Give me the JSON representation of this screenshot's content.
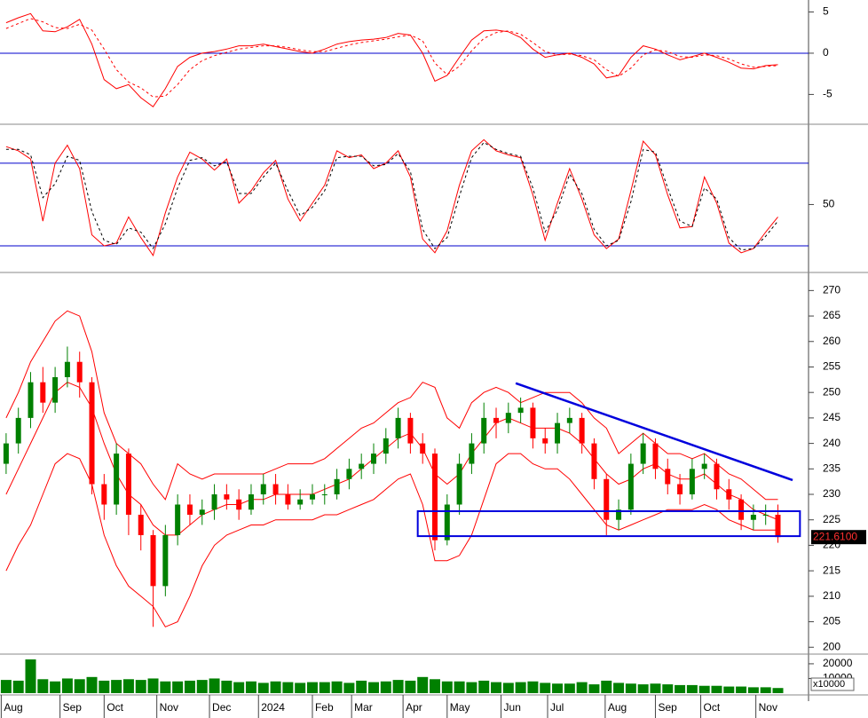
{
  "chart_data": [
    {
      "type": "line",
      "xlim": [
        0,
        66
      ],
      "ylim": [
        -8.4,
        6.45
      ],
      "yticks": [
        -5,
        0,
        5
      ],
      "hlines": [
        0
      ],
      "hline_color": "#0000cc",
      "series": [
        {
          "color": "#ff0000",
          "style": "solid",
          "values": [
            3.7,
            4.3,
            4.8,
            2.7,
            2.6,
            3.2,
            4.1,
            1.1,
            -3.2,
            -4.3,
            -3.8,
            -5.4,
            -6.5,
            -4.3,
            -1.6,
            -0.5,
            0,
            0.2,
            0.5,
            0.9,
            0.9,
            1.1,
            0.8,
            0.5,
            0.2,
            0,
            0.5,
            1.1,
            1.4,
            1.6,
            1.7,
            1.9,
            2.4,
            2.2,
            0,
            -3.4,
            -2.7,
            -0.5,
            1.6,
            2.7,
            2.8,
            2.6,
            1.9,
            0.5,
            -0.5,
            -0.2,
            0,
            -0.5,
            -1.3,
            -3.0,
            -2.7,
            -0.5,
            0.9,
            0.5,
            -0.2,
            -0.8,
            -0.4,
            0,
            -0.5,
            -1.1,
            -1.8,
            -1.9,
            -1.5,
            -1.4
          ]
        },
        {
          "color": "#ff0000",
          "style": "dashed",
          "values": [
            3.0,
            3.6,
            4.2,
            3.8,
            3.1,
            3.0,
            3.5,
            2.8,
            0.5,
            -2.0,
            -3.5,
            -4.2,
            -5.3,
            -5.2,
            -3.8,
            -2.0,
            -0.9,
            -0.3,
            0.1,
            0.5,
            0.7,
            0.9,
            0.9,
            0.7,
            0.4,
            0.2,
            0.2,
            0.6,
            1.0,
            1.3,
            1.5,
            1.7,
            2.0,
            2.2,
            1.5,
            -1.2,
            -2.6,
            -1.6,
            0.3,
            1.8,
            2.5,
            2.7,
            2.3,
            1.3,
            0.2,
            -0.2,
            -0.1,
            -0.3,
            -0.8,
            -2.0,
            -2.8,
            -1.8,
            -0.2,
            0.4,
            0.2,
            -0.4,
            -0.5,
            -0.2,
            -0.3,
            -0.7,
            -1.3,
            -1.7,
            -1.6,
            -1.5
          ]
        }
      ]
    },
    {
      "type": "line",
      "xlim": [
        0,
        66
      ],
      "ylim": [
        2,
        105
      ],
      "yticks": [
        50
      ],
      "hlines": [
        20,
        80
      ],
      "hline_color": "#0000cc",
      "series": [
        {
          "color": "#ff0000",
          "style": "solid",
          "values": [
            92,
            89,
            83,
            38,
            80,
            93,
            76,
            28,
            20,
            22,
            41,
            26,
            13,
            44,
            70,
            88,
            83,
            75,
            83,
            51,
            60,
            73,
            82,
            54,
            38,
            51,
            64,
            89,
            84,
            86,
            76,
            80,
            89,
            70,
            25,
            15,
            31,
            64,
            89,
            97,
            89,
            86,
            84,
            57,
            24,
            51,
            76,
            54,
            28,
            18,
            25,
            60,
            96,
            86,
            57,
            33,
            34,
            70,
            51,
            22,
            15,
            18,
            30,
            41
          ]
        },
        {
          "color": "#000000",
          "style": "dashed",
          "values": [
            90,
            90,
            86,
            55,
            65,
            85,
            82,
            45,
            24,
            21,
            33,
            30,
            18,
            36,
            62,
            82,
            84,
            78,
            81,
            58,
            58,
            70,
            80,
            60,
            42,
            48,
            60,
            84,
            85,
            85,
            78,
            79,
            87,
            74,
            32,
            18,
            26,
            56,
            84,
            95,
            90,
            87,
            85,
            62,
            30,
            46,
            72,
            58,
            32,
            20,
            24,
            52,
            90,
            88,
            62,
            38,
            34,
            62,
            54,
            26,
            17,
            18,
            27,
            38
          ]
        }
      ]
    },
    {
      "type": "candlestick",
      "xlim": [
        0,
        66
      ],
      "ylim": [
        199,
        272.5
      ],
      "yticks": [
        200,
        205,
        210,
        215,
        220,
        225,
        230,
        235,
        240,
        245,
        250,
        255,
        260,
        265,
        270
      ],
      "up_color": "#008000",
      "down_color": "#ff0000",
      "open": [
        236,
        240,
        245,
        252,
        248,
        253,
        256,
        252,
        232,
        228,
        238,
        226,
        222,
        212,
        222,
        228,
        226,
        227,
        230,
        229,
        227,
        230,
        232,
        230,
        228,
        229,
        230,
        230,
        233,
        235,
        236,
        238,
        241,
        245,
        240,
        238,
        221,
        228,
        236,
        240,
        245,
        244,
        246,
        247,
        241,
        240,
        244,
        245,
        240,
        233,
        225,
        227,
        236,
        240,
        235,
        232,
        230,
        235,
        236,
        231,
        229,
        225,
        226,
        226
      ],
      "high": [
        242,
        247,
        254,
        255,
        255,
        259,
        258,
        253,
        234,
        240,
        239,
        228,
        223,
        224,
        230,
        230,
        229,
        232,
        232,
        231,
        232,
        234,
        234,
        232,
        231,
        232,
        232,
        235,
        237,
        238,
        240,
        243,
        247,
        246,
        242,
        239,
        230,
        238,
        242,
        248,
        247,
        248,
        249,
        248,
        243,
        246,
        247,
        246,
        241,
        234,
        229,
        238,
        242,
        241,
        237,
        234,
        237,
        238,
        237,
        233,
        230,
        228,
        228,
        228
      ],
      "low": [
        234,
        238,
        243,
        246,
        246,
        251,
        249,
        230,
        225,
        226,
        222,
        219,
        204,
        210,
        220,
        224,
        224,
        225,
        227,
        225,
        226,
        228,
        228,
        227,
        227,
        228,
        228,
        229,
        231,
        233,
        234,
        236,
        239,
        238,
        236,
        219,
        220,
        226,
        234,
        238,
        241,
        242,
        244,
        239,
        238,
        238,
        242,
        238,
        231,
        222,
        223,
        226,
        234,
        233,
        230,
        228,
        229,
        233,
        229,
        227,
        223,
        223,
        224,
        220.5
      ],
      "close": [
        240,
        245,
        252,
        248,
        253,
        256,
        252,
        232,
        228,
        238,
        226,
        222,
        212,
        222,
        228,
        226,
        227,
        230,
        229,
        227,
        230,
        232,
        230,
        228,
        229,
        230,
        230,
        233,
        235,
        236,
        238,
        241,
        245,
        240,
        238,
        221,
        228,
        236,
        240,
        245,
        244,
        246,
        247,
        241,
        240,
        244,
        245,
        240,
        233,
        225,
        227,
        236,
        240,
        235,
        232,
        230,
        235,
        236,
        231,
        229,
        225,
        226,
        226,
        221.61
      ],
      "bands": [
        {
          "color": "#ff0000",
          "values": [
            245,
            250,
            256,
            260,
            264,
            266,
            265,
            258,
            246,
            240,
            238,
            236,
            232,
            229,
            236,
            234,
            233,
            234,
            234,
            234,
            234,
            234,
            235,
            236,
            236,
            236,
            237,
            239,
            241,
            243,
            244,
            246,
            248,
            249,
            252,
            251,
            245,
            243,
            248,
            250,
            251,
            250,
            248,
            249,
            250,
            250,
            250,
            248,
            245,
            243,
            238,
            240,
            242,
            240,
            238,
            238,
            237,
            238,
            236,
            234,
            233,
            231,
            229,
            229
          ]
        },
        {
          "color": "#ff0000",
          "values": [
            230,
            235,
            240,
            245,
            250,
            252,
            251,
            247,
            240,
            234,
            230,
            228,
            224,
            222,
            222,
            224,
            226,
            227,
            228,
            228,
            229,
            229,
            230,
            230,
            230,
            230,
            231,
            232,
            233,
            235,
            237,
            239,
            241,
            242,
            239,
            234,
            232,
            234,
            238,
            241,
            244,
            245,
            244,
            243,
            243,
            243,
            242,
            240,
            237,
            234,
            232,
            233,
            235,
            236,
            234,
            233,
            233,
            234,
            232,
            230,
            229,
            227,
            226,
            225
          ]
        },
        {
          "color": "#ff0000",
          "values": [
            215,
            220,
            224,
            230,
            236,
            238,
            237,
            232,
            222,
            216,
            212,
            210,
            208,
            204,
            205,
            210,
            216,
            220,
            222,
            223,
            224,
            224,
            225,
            225,
            225,
            225,
            226,
            226,
            227,
            228,
            229,
            231,
            233,
            234,
            228,
            217,
            217,
            218,
            222,
            229,
            236,
            238,
            238,
            236,
            235,
            235,
            233,
            230,
            227,
            224,
            223,
            224,
            225,
            226,
            227,
            227,
            227,
            228,
            227,
            225,
            224,
            223,
            223,
            223
          ]
        }
      ],
      "trendline": {
        "color": "#0000dd",
        "x": [
          42.1,
          64.7
        ],
        "y": [
          251.8,
          232.8
        ]
      },
      "box": {
        "color": "#0000dd",
        "x": [
          34.1,
          65.3
        ],
        "y": [
          221.8,
          226.7
        ]
      },
      "last_price": {
        "value": 221.61,
        "label": "221.6100"
      }
    },
    {
      "type": "bar",
      "xlim": [
        0,
        66
      ],
      "ylim": [
        0,
        26000
      ],
      "yticks": [
        10000,
        20000
      ],
      "color": "#008000",
      "scale_label": "x10000",
      "values": [
        9000,
        8500,
        23000,
        9500,
        8000,
        10000,
        9500,
        11000,
        8500,
        9000,
        9500,
        9000,
        10000,
        8000,
        8000,
        8500,
        9000,
        10000,
        8500,
        7500,
        8000,
        7000,
        8000,
        7500,
        7000,
        7500,
        7500,
        8000,
        7000,
        8500,
        7500,
        8000,
        9000,
        8500,
        11000,
        9500,
        8000,
        8000,
        7500,
        8500,
        7500,
        7000,
        7500,
        8000,
        7000,
        6500,
        6500,
        7500,
        6000,
        8500,
        7000,
        6500,
        6000,
        6500,
        6000,
        5500,
        5500,
        5000,
        5000,
        4500,
        4500,
        4000,
        4000,
        3500
      ],
      "xticks": [
        {
          "value": 0.1,
          "label": "Aug"
        },
        {
          "value": 4.9,
          "label": "Sep"
        },
        {
          "value": 8.5,
          "label": "Oct"
        },
        {
          "value": 12.8,
          "label": "Nov"
        },
        {
          "value": 17.1,
          "label": "Dec"
        },
        {
          "value": 21.1,
          "label": "2024"
        },
        {
          "value": 25.5,
          "label": "Feb"
        },
        {
          "value": 28.7,
          "label": "Mar"
        },
        {
          "value": 32.9,
          "label": "Apr"
        },
        {
          "value": 36.5,
          "label": "May"
        },
        {
          "value": 40.9,
          "label": "Jun"
        },
        {
          "value": 44.7,
          "label": "Jul"
        },
        {
          "value": 49.4,
          "label": "Aug"
        },
        {
          "value": 53.5,
          "label": "Sep"
        },
        {
          "value": 57.2,
          "label": "Oct"
        },
        {
          "value": 61.7,
          "label": "Nov"
        }
      ]
    }
  ]
}
